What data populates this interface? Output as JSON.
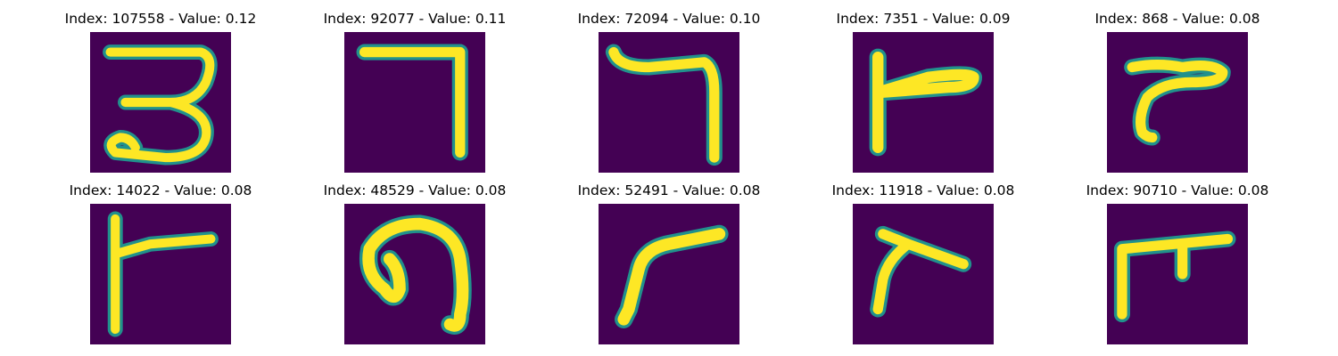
{
  "colors": {
    "background": "#440154",
    "edge": "#21918c",
    "stroke": "#fde725"
  },
  "panels": [
    {
      "index": "107558",
      "value": "0.12",
      "title": "Index: 107558 - Value: 0.12",
      "glyph": "digit-three"
    },
    {
      "index": "92077",
      "value": "0.11",
      "title": "Index: 92077 - Value: 0.11",
      "glyph": "seven-corner"
    },
    {
      "index": "72094",
      "value": "0.10",
      "title": "Index: 72094 - Value: 0.10",
      "glyph": "wavy-seven-corner"
    },
    {
      "index": "7351",
      "value": "0.09",
      "title": "Index: 7351 - Value: 0.09",
      "glyph": "vertical-with-arm"
    },
    {
      "index": "868",
      "value": "0.08",
      "title": "Index: 868 - Value: 0.08",
      "glyph": "curved-arm"
    },
    {
      "index": "14022",
      "value": "0.08",
      "title": "Index: 14022 - Value: 0.08",
      "glyph": "vertical-with-arm"
    },
    {
      "index": "48529",
      "value": "0.08",
      "title": "Index: 48529 - Value: 0.08",
      "glyph": "hook-loop"
    },
    {
      "index": "52491",
      "value": "0.08",
      "title": "Index: 52491 - Value: 0.08",
      "glyph": "curved-r"
    },
    {
      "index": "11918",
      "value": "0.08",
      "title": "Index: 11918 - Value: 0.08",
      "glyph": "slanted-arm"
    },
    {
      "index": "90710",
      "value": "0.08",
      "title": "Index: 90710 - Value: 0.08",
      "glyph": "pi-shape"
    }
  ]
}
